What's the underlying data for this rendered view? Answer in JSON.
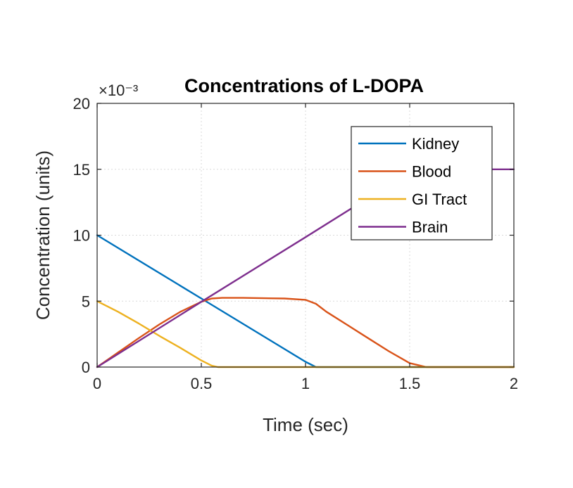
{
  "chart_data": {
    "type": "line",
    "title": "Concentrations of L-DOPA",
    "xlabel": "Time (sec)",
    "ylabel": "Concentration (units)",
    "y_exponent_label": "×10⁻³",
    "xlim": [
      0,
      2
    ],
    "ylim": [
      0,
      20
    ],
    "xticks": [
      0,
      0.5,
      1,
      1.5,
      2
    ],
    "yticks": [
      0,
      5,
      10,
      15,
      20
    ],
    "xtick_labels": [
      "0",
      "0.5",
      "1",
      "1.5",
      "2"
    ],
    "ytick_labels": [
      "0",
      "5",
      "10",
      "15",
      "20"
    ],
    "grid": true,
    "legend_position": "top-right",
    "series": [
      {
        "name": "Kidney",
        "color": "#0072BD",
        "x": [
          0,
          0.5,
          1.0,
          1.05,
          2.0
        ],
        "y": [
          10,
          5.2,
          0.4,
          0,
          0
        ]
      },
      {
        "name": "Blood",
        "color": "#D95319",
        "x": [
          0,
          0.1,
          0.2,
          0.3,
          0.4,
          0.5,
          0.55,
          0.6,
          0.7,
          0.8,
          0.9,
          1.0,
          1.05,
          1.1,
          1.2,
          1.3,
          1.4,
          1.5,
          1.58,
          2.0
        ],
        "y": [
          0,
          1.1,
          2.2,
          3.25,
          4.2,
          4.95,
          5.2,
          5.25,
          5.25,
          5.22,
          5.2,
          5.1,
          4.8,
          4.2,
          3.2,
          2.2,
          1.2,
          0.3,
          0,
          0
        ]
      },
      {
        "name": "GI Tract",
        "color": "#EDB120",
        "x": [
          0,
          0.1,
          0.2,
          0.3,
          0.4,
          0.5,
          0.55,
          0.58,
          2.0
        ],
        "y": [
          5,
          4.2,
          3.3,
          2.35,
          1.45,
          0.5,
          0.1,
          0,
          0
        ]
      },
      {
        "name": "Brain",
        "color": "#7E2F8E",
        "x": [
          0,
          0.5,
          1.0,
          1.5,
          1.55,
          2.0
        ],
        "y": [
          0,
          4.95,
          9.85,
          14.8,
          15,
          15
        ]
      }
    ]
  }
}
